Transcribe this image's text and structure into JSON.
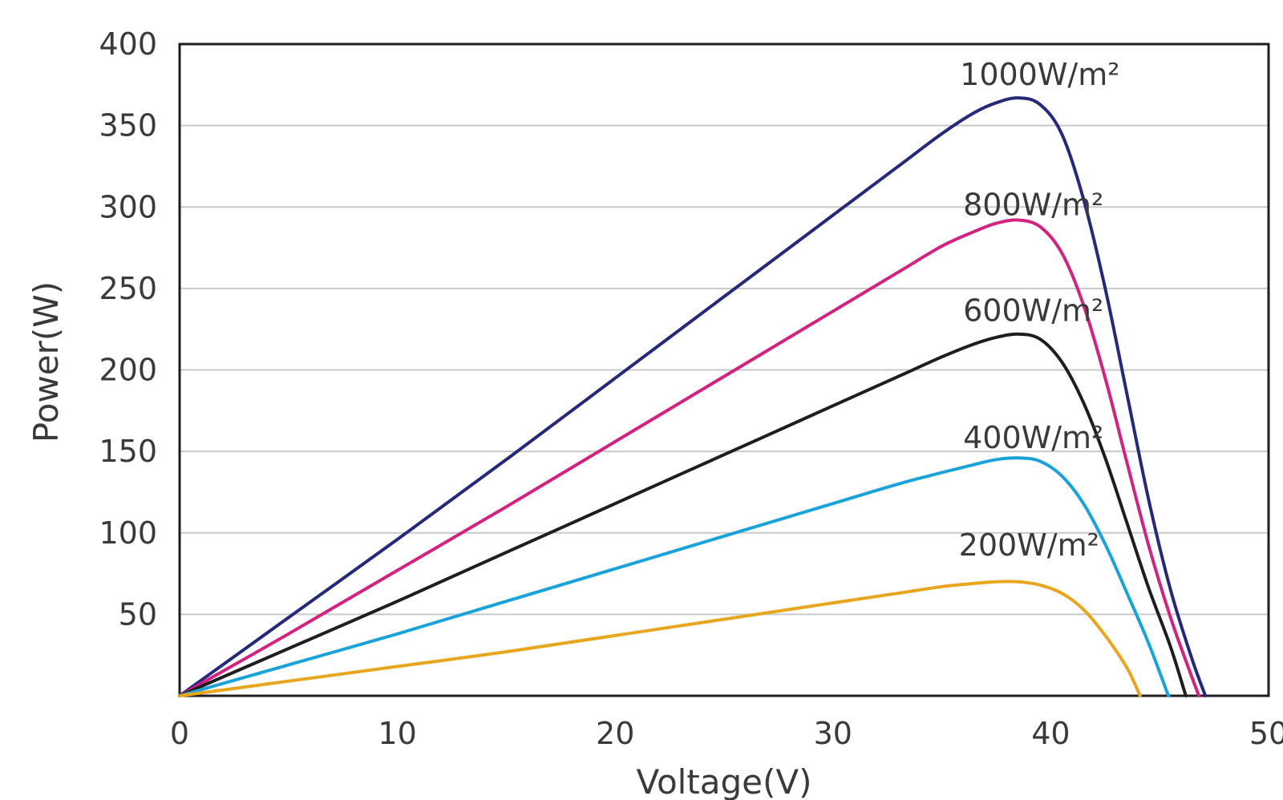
{
  "chart_data": {
    "type": "line",
    "title": "",
    "xlabel": "Voltage(V)",
    "ylabel": "Power(W)",
    "xlim": [
      0,
      50
    ],
    "ylim": [
      0,
      400
    ],
    "x_ticks": [
      "0",
      "10",
      "20",
      "30",
      "40",
      "50"
    ],
    "y_ticks": [
      "50",
      "100",
      "150",
      "200",
      "250",
      "300",
      "350",
      "400"
    ],
    "grid": "horizontal",
    "series": [
      {
        "name": "1000W/m²",
        "color": "#26297a",
        "label_at": [
          39.5,
          375
        ],
        "points": [
          [
            0,
            0
          ],
          [
            5,
            48
          ],
          [
            10,
            96
          ],
          [
            15,
            145
          ],
          [
            20,
            195
          ],
          [
            25,
            245
          ],
          [
            30,
            295
          ],
          [
            33,
            325
          ],
          [
            35,
            345
          ],
          [
            36.5,
            358
          ],
          [
            37.5,
            364
          ],
          [
            38.5,
            367
          ],
          [
            39.5,
            363
          ],
          [
            40.5,
            345
          ],
          [
            41.5,
            305
          ],
          [
            42.5,
            250
          ],
          [
            43.5,
            185
          ],
          [
            44.5,
            120
          ],
          [
            45.5,
            65
          ],
          [
            46.5,
            22
          ],
          [
            47.1,
            0
          ]
        ]
      },
      {
        "name": "800W/m²",
        "color": "#d1237f",
        "label_at": [
          39.2,
          295
        ],
        "points": [
          [
            0,
            0
          ],
          [
            5,
            38
          ],
          [
            10,
            77
          ],
          [
            15,
            116
          ],
          [
            20,
            156
          ],
          [
            25,
            196
          ],
          [
            30,
            236
          ],
          [
            33,
            260
          ],
          [
            35,
            276
          ],
          [
            36.5,
            285
          ],
          [
            37.5,
            290
          ],
          [
            38.5,
            292
          ],
          [
            39.5,
            288
          ],
          [
            40.5,
            272
          ],
          [
            41.5,
            240
          ],
          [
            42.5,
            195
          ],
          [
            43.5,
            143
          ],
          [
            44.5,
            92
          ],
          [
            45.5,
            48
          ],
          [
            46.3,
            18
          ],
          [
            46.8,
            0
          ]
        ]
      },
      {
        "name": "600W/m²",
        "color": "#1e1e1e",
        "label_at": [
          39.2,
          230
        ],
        "points": [
          [
            0,
            0
          ],
          [
            5,
            29
          ],
          [
            10,
            58
          ],
          [
            15,
            88
          ],
          [
            20,
            118
          ],
          [
            25,
            148
          ],
          [
            30,
            178
          ],
          [
            33,
            196
          ],
          [
            35,
            208
          ],
          [
            36.5,
            216
          ],
          [
            37.5,
            220
          ],
          [
            38.5,
            222
          ],
          [
            39.5,
            219
          ],
          [
            40.5,
            205
          ],
          [
            41.5,
            180
          ],
          [
            42.5,
            146
          ],
          [
            43.5,
            106
          ],
          [
            44.5,
            66
          ],
          [
            45.5,
            30
          ],
          [
            46.2,
            0
          ]
        ]
      },
      {
        "name": "400W/m²",
        "color": "#19a3d9",
        "label_at": [
          39.2,
          152
        ],
        "points": [
          [
            0,
            0
          ],
          [
            5,
            19
          ],
          [
            10,
            38
          ],
          [
            15,
            58
          ],
          [
            20,
            78
          ],
          [
            25,
            98
          ],
          [
            30,
            118
          ],
          [
            33,
            130
          ],
          [
            35,
            137
          ],
          [
            36.5,
            142
          ],
          [
            37.5,
            145
          ],
          [
            38.5,
            146
          ],
          [
            39.5,
            144
          ],
          [
            40.5,
            135
          ],
          [
            41.5,
            118
          ],
          [
            42.5,
            93
          ],
          [
            43.5,
            63
          ],
          [
            44.5,
            32
          ],
          [
            45.4,
            0
          ]
        ]
      },
      {
        "name": "200W/m²",
        "color": "#e8a51e",
        "label_at": [
          39.0,
          86
        ],
        "points": [
          [
            0,
            0
          ],
          [
            5,
            9
          ],
          [
            10,
            18
          ],
          [
            15,
            27
          ],
          [
            20,
            37
          ],
          [
            25,
            47
          ],
          [
            30,
            57
          ],
          [
            33,
            63
          ],
          [
            35,
            67
          ],
          [
            36.5,
            69
          ],
          [
            37.5,
            70
          ],
          [
            38.5,
            70
          ],
          [
            39.5,
            68
          ],
          [
            40.5,
            63
          ],
          [
            41.5,
            53
          ],
          [
            42.5,
            37
          ],
          [
            43.5,
            17
          ],
          [
            44.1,
            0
          ]
        ]
      }
    ]
  }
}
